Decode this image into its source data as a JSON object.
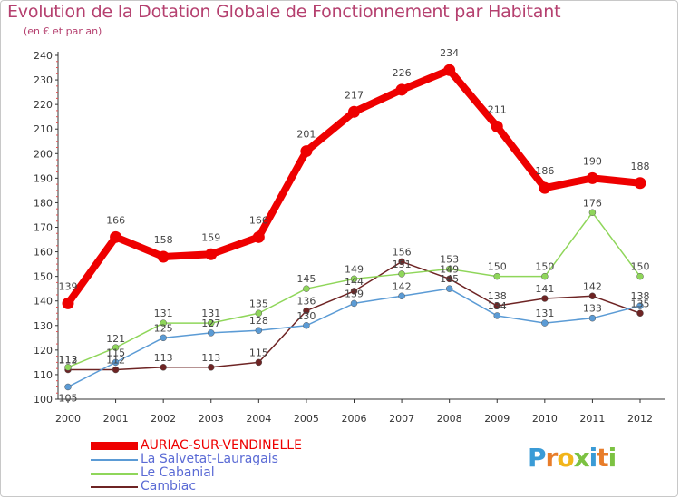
{
  "title": "Evolution de la Dotation Globale de Fonctionnement par Habitant",
  "subtitle": "(en € et par an)",
  "brand": {
    "letters": [
      {
        "char": "P",
        "color": "#3a9bd6"
      },
      {
        "char": "r",
        "color": "#e87d2a"
      },
      {
        "char": "o",
        "color": "#f2b51a"
      },
      {
        "char": "x",
        "color": "#7cc242"
      },
      {
        "char": "i",
        "color": "#3a9bd6"
      },
      {
        "char": "t",
        "color": "#e87d2a"
      },
      {
        "char": "i",
        "color": "#7cc242"
      }
    ]
  },
  "chart_data": {
    "type": "line",
    "title": "Evolution de la Dotation Globale de Fonctionnement par Habitant",
    "subtitle": "(en € et par an)",
    "xlabel": "",
    "ylabel": "",
    "ylim": [
      100,
      240
    ],
    "y_ticks": [
      "100",
      "110",
      "120",
      "130",
      "140",
      "150",
      "160",
      "170",
      "180",
      "190",
      "200",
      "210",
      "220",
      "230",
      "240"
    ],
    "categories": [
      "2000",
      "2001",
      "2002",
      "2003",
      "2004",
      "2005",
      "2006",
      "2007",
      "2008",
      "2009",
      "2010",
      "2011",
      "2012"
    ],
    "series": [
      {
        "name": "AURIAC-SUR-VENDINELLE",
        "color": "#ee0000",
        "values": [
          139,
          166,
          158,
          159,
          166,
          201,
          217,
          226,
          234,
          211,
          186,
          190,
          188
        ],
        "labels": [
          "139",
          "166",
          "158",
          "159",
          "166",
          "201",
          "217",
          "226",
          "234",
          "211",
          "186",
          "190",
          "188"
        ]
      },
      {
        "name": "La Salvetat-Lauragais",
        "color": "#5b9bd5",
        "values": [
          105,
          115,
          125,
          127,
          128,
          130,
          139,
          142,
          145,
          134,
          131,
          133,
          138
        ],
        "labels": [
          "105",
          "115",
          "125",
          "127",
          "128",
          "130",
          "139",
          "142",
          "145",
          "134",
          "131",
          "133",
          "138"
        ]
      },
      {
        "name": "Le Cabanial",
        "color": "#8fd65a",
        "values": [
          113,
          121,
          131,
          131,
          135,
          145,
          149,
          151,
          153,
          150,
          150,
          176,
          150
        ],
        "labels": [
          "113",
          "121",
          "131",
          "131",
          "135",
          "145",
          "149",
          "151",
          "153",
          "150",
          "150",
          "176",
          "150"
        ]
      },
      {
        "name": "Cambiac",
        "color": "#6e2424",
        "values": [
          112,
          112,
          113,
          113,
          115,
          136,
          144,
          156,
          149,
          138,
          141,
          142,
          135
        ],
        "labels": [
          "112",
          "112",
          "113",
          "113",
          "115",
          "136",
          "144",
          "156",
          "149",
          "138",
          "141",
          "142",
          "135"
        ]
      }
    ],
    "legend_position": "bottom-left",
    "grid": false
  }
}
